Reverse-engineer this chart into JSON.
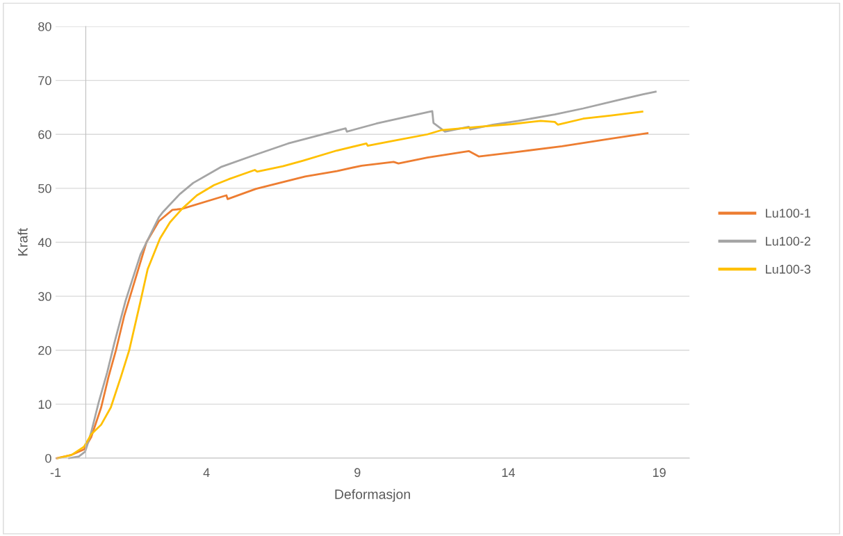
{
  "chart_data": {
    "type": "line",
    "xlabel": "Deformasjon",
    "ylabel": "Kraft",
    "xlim": [
      -1,
      20
    ],
    "xticks": [
      -1,
      4,
      9,
      14,
      19
    ],
    "ylim": [
      0,
      80
    ],
    "yticks": [
      0,
      10,
      20,
      30,
      40,
      50,
      60,
      70,
      80
    ],
    "grid": "y",
    "legend": "right",
    "marker": "none",
    "line_style": "solid",
    "series": [
      {
        "name": "Lu100-1",
        "color": "#ed7d31",
        "x": [
          -0.96,
          -0.47,
          -0.06,
          0.18,
          0.51,
          0.75,
          1.0,
          1.28,
          2.01,
          2.42,
          2.87,
          3.19,
          4.66,
          4.7,
          5.64,
          7.27,
          8.32,
          9.14,
          10.2,
          10.36,
          11.32,
          12.69,
          13.02,
          14.23,
          15.78,
          17.41,
          18.61
        ],
        "values": [
          0,
          0.6,
          1.6,
          3.9,
          9.4,
          15,
          20,
          26.5,
          40,
          43.9,
          46.0,
          46.2,
          48.7,
          48.0,
          49.9,
          52.2,
          53.2,
          54.2,
          54.9,
          54.6,
          55.7,
          56.9,
          55.9,
          56.7,
          57.8,
          59.2,
          60.2
        ]
      },
      {
        "name": "Lu100-2",
        "color": "#a5a5a5",
        "x": [
          -0.55,
          -0.23,
          -0.02,
          0.18,
          0.43,
          0.71,
          0.95,
          1.32,
          1.81,
          2.42,
          2.54,
          3.11,
          3.56,
          4.5,
          5.56,
          6.7,
          7.51,
          8.61,
          8.65,
          9.63,
          11.32,
          11.48,
          11.52,
          11.76,
          11.9,
          12.69,
          12.74,
          13.49,
          14.33,
          15.54,
          16.48,
          17.6,
          18.44,
          18.88
        ],
        "values": [
          0,
          0.3,
          1.2,
          4.8,
          10.4,
          15.9,
          21.4,
          29.2,
          37.7,
          44.6,
          45.5,
          48.9,
          51.0,
          54.0,
          56.1,
          58.3,
          59.5,
          61.1,
          60.5,
          62.0,
          64.1,
          64.3,
          62.1,
          61.1,
          60.5,
          61.4,
          60.9,
          61.8,
          62.5,
          63.7,
          64.8,
          66.3,
          67.4,
          67.9
        ]
      },
      {
        "name": "Lu100-3",
        "color": "#ffc000",
        "x": [
          -0.92,
          -0.47,
          -0.06,
          0.18,
          0.51,
          0.83,
          1.16,
          1.44,
          1.81,
          2.05,
          2.3,
          2.46,
          2.79,
          3.19,
          3.68,
          4.25,
          4.74,
          5.6,
          5.68,
          6.53,
          7.18,
          8.32,
          9.3,
          9.34,
          10.36,
          11.32,
          11.8,
          13.02,
          14.14,
          15.07,
          15.54,
          15.64,
          16.48,
          17.41,
          18.44
        ],
        "values": [
          0,
          0.6,
          2.1,
          4.4,
          6.2,
          9.4,
          15,
          20,
          29,
          35,
          38.5,
          40.7,
          43.7,
          46.2,
          48.7,
          50.6,
          51.7,
          53.4,
          53.1,
          54.1,
          55.1,
          57.0,
          58.3,
          57.9,
          59.0,
          60.0,
          60.8,
          61.4,
          61.9,
          62.5,
          62.3,
          61.8,
          62.9,
          63.5,
          64.2
        ]
      }
    ]
  }
}
